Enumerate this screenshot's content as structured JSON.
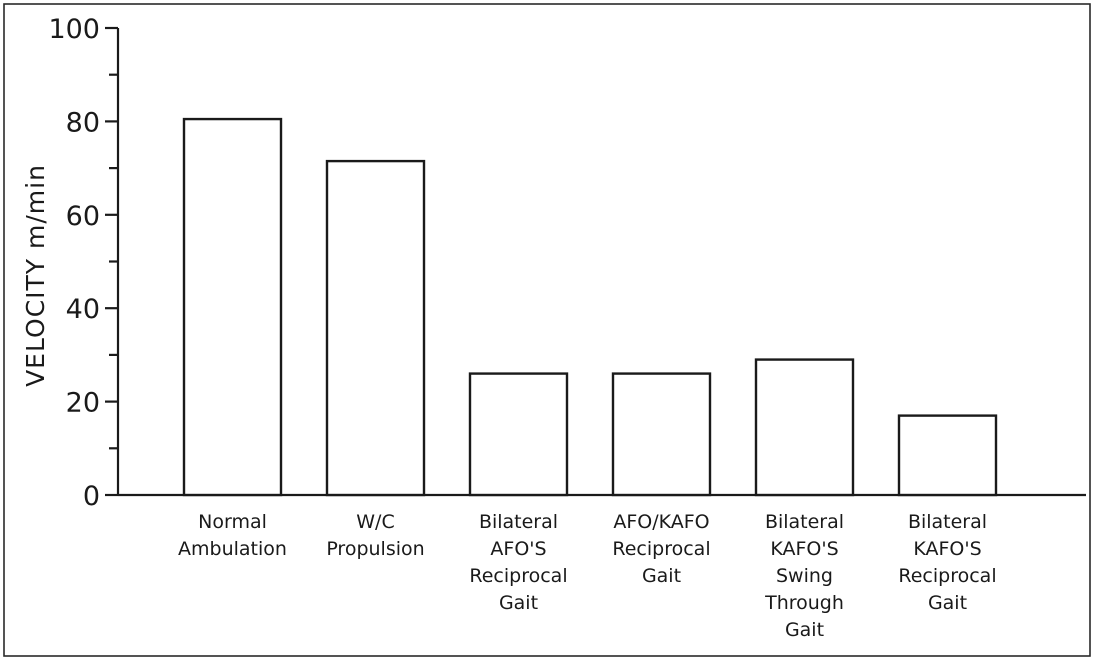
{
  "chart_data": {
    "type": "bar",
    "title": "",
    "xlabel": "",
    "ylabel": "VELOCITY  m/min",
    "ylim": [
      0,
      100
    ],
    "yticks": [
      0,
      20,
      40,
      60,
      80,
      100
    ],
    "grid": false,
    "categories": [
      [
        "Normal",
        "Ambulation"
      ],
      [
        "W/C",
        "Propulsion"
      ],
      [
        "Bilateral",
        "AFO'S",
        "Reciprocal",
        "Gait"
      ],
      [
        "AFO/KAFO",
        "Reciprocal",
        "Gait"
      ],
      [
        "Bilateral",
        "KAFO'S",
        "Swing",
        "Through",
        "Gait"
      ],
      [
        "Bilateral",
        "KAFO'S",
        "Reciprocal",
        "Gait"
      ]
    ],
    "values": [
      80.5,
      71.5,
      26,
      26,
      29,
      17
    ]
  }
}
